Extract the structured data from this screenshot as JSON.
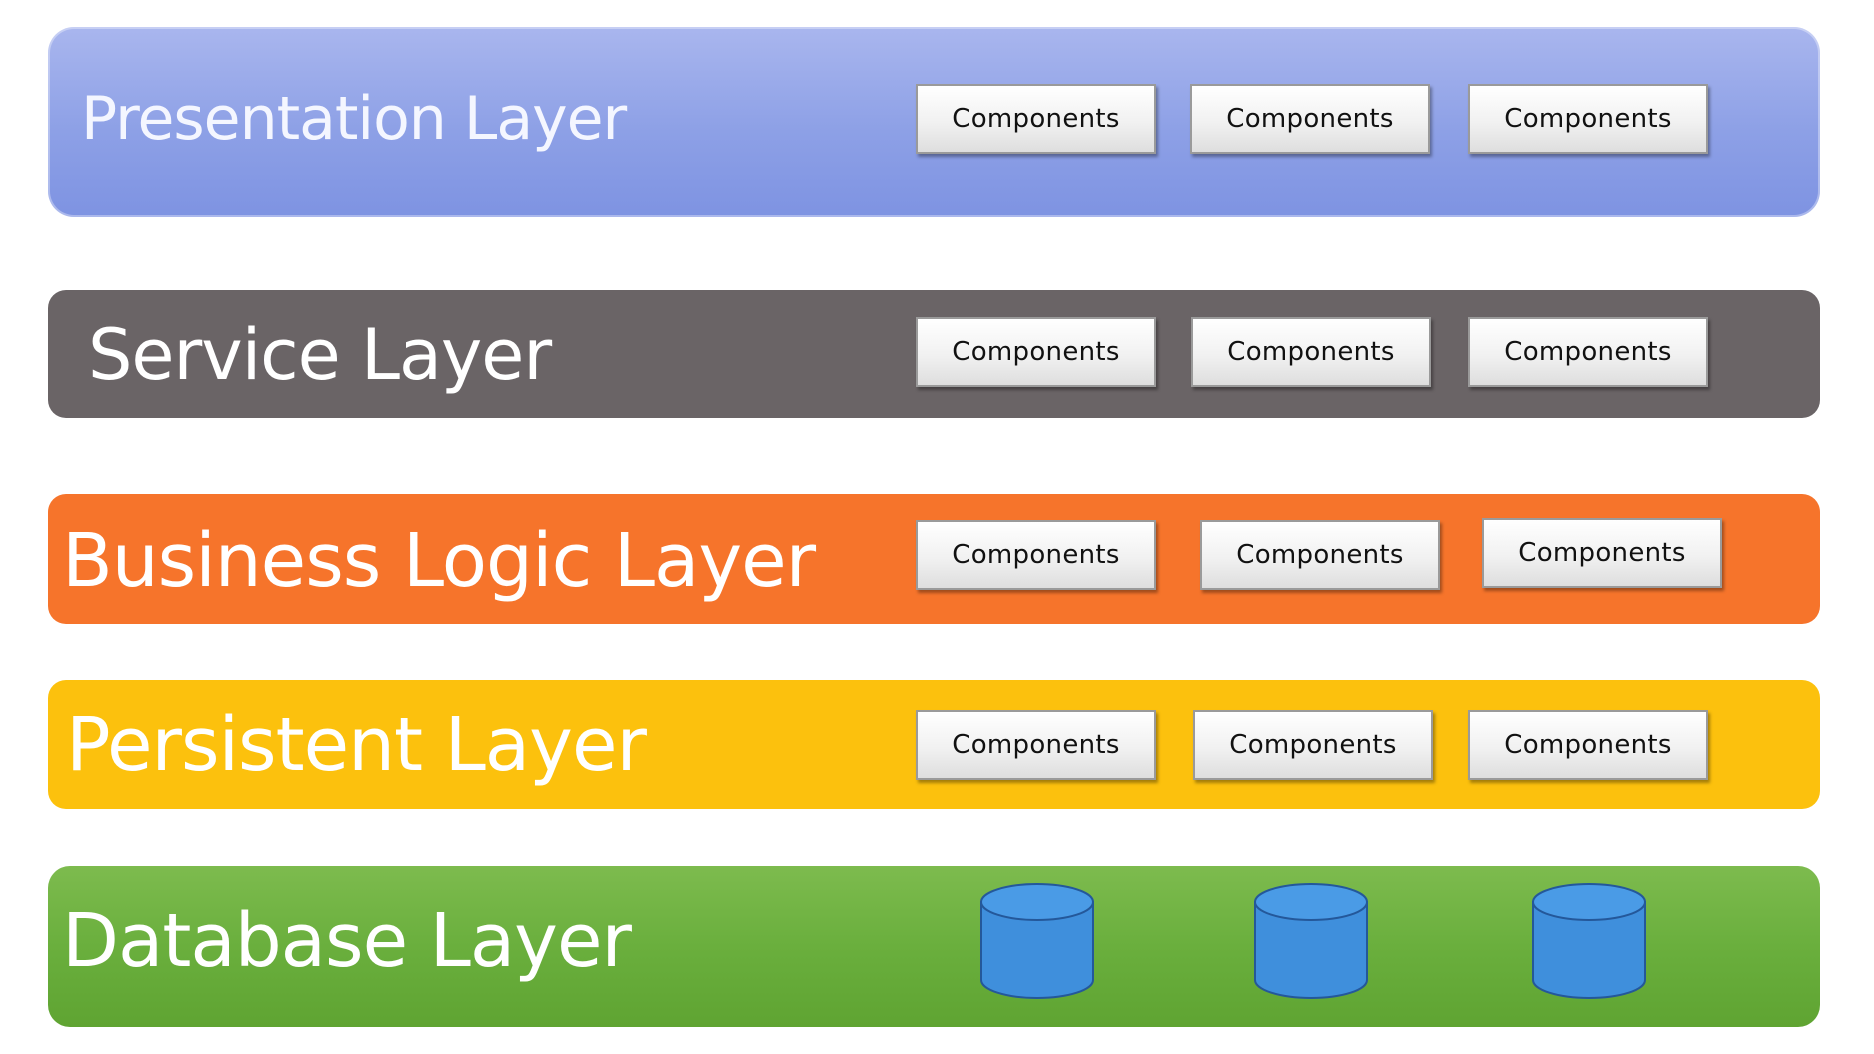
{
  "layers": {
    "presentation": {
      "title": "Presentation Layer",
      "color": "#8da0e6",
      "components": [
        "Components",
        "Components",
        "Components"
      ]
    },
    "service": {
      "title": "Service Layer",
      "color": "#6a6466",
      "components": [
        "Components",
        "Components",
        "Components"
      ]
    },
    "business": {
      "title": "Business Logic Layer",
      "color": "#f6742b",
      "components": [
        "Components",
        "Components",
        "Components"
      ]
    },
    "persistent": {
      "title": "Persistent Layer",
      "color": "#fcc10d",
      "components": [
        "Components",
        "Components",
        "Components"
      ]
    },
    "database": {
      "title": "Database Layer",
      "color": "#6aaf3d",
      "databases": [
        "database-icon",
        "database-icon",
        "database-icon"
      ],
      "database_color": "#3f8fdc"
    }
  }
}
